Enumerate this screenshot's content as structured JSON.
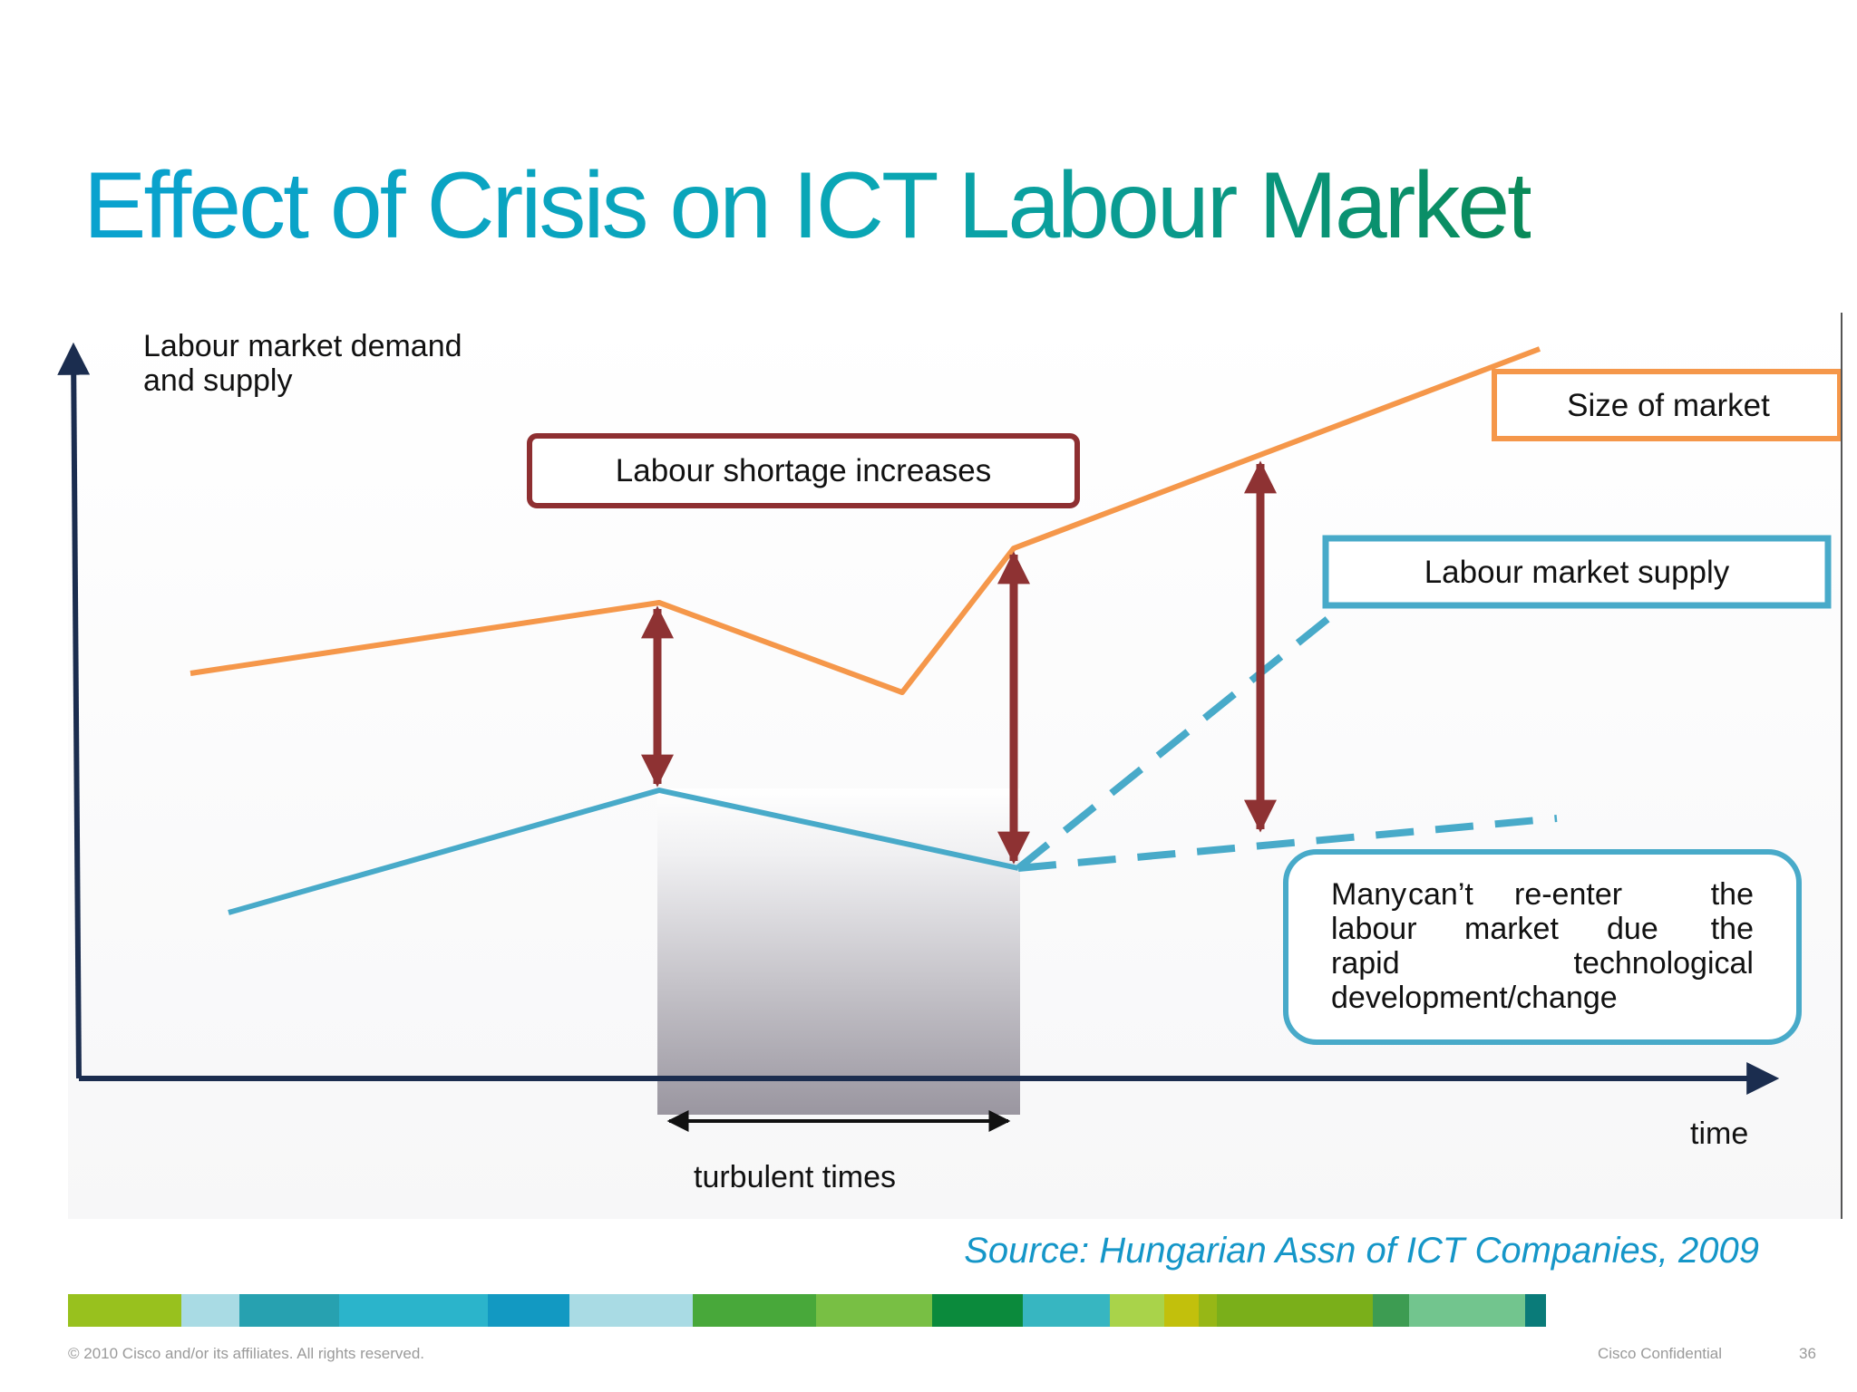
{
  "slide": {
    "title": "Effect of Crisis on ICT Labour Market",
    "source": "Source: Hungarian Assn of ICT Companies, 2009",
    "copyright": "© 2010 Cisco and/or its affiliates. All rights reserved.",
    "confidential": "Cisco Confidential",
    "page_number": "36"
  },
  "diagram": {
    "y_axis_label_line1": "Labour market demand",
    "y_axis_label_line2": "and supply",
    "x_axis_label": "time",
    "period_label": "turbulent times",
    "callouts": {
      "shortage": "Labour shortage increases",
      "size": "Size of market",
      "supply": "Labour market supply",
      "note_line1": [
        "Many",
        "can’t",
        "re-enter",
        "the"
      ],
      "note_line2": [
        "labour",
        "market",
        "due",
        "the"
      ],
      "note_line3": [
        "rapid",
        "technological"
      ],
      "note_line4": "development/change"
    }
  },
  "colors": {
    "demand_line": "#f5974a",
    "supply_line": "#48aac9",
    "gap_arrow": "#8e3233",
    "axis": "#1b2d4f",
    "shortage_border": "#8e2f31",
    "size_border": "#f5974a",
    "supply_border": "#48aac9",
    "title_start": "#0aa2cf",
    "title_end": "#0a8a58",
    "source_text": "#1596c8"
  },
  "color_bar": [
    "#98c11e",
    "#a9dbe4",
    "#27a1b0",
    "#2bb4cb",
    "#1299c2",
    "#a9dbe4",
    "#48a83a",
    "#78bf44",
    "#0b8a3c",
    "#37b6c1",
    "#a9d34a",
    "#c2c00c",
    "#97b716",
    "#7aaf1a",
    "#3d9c52",
    "#72c58e",
    "#0a7b79"
  ]
}
